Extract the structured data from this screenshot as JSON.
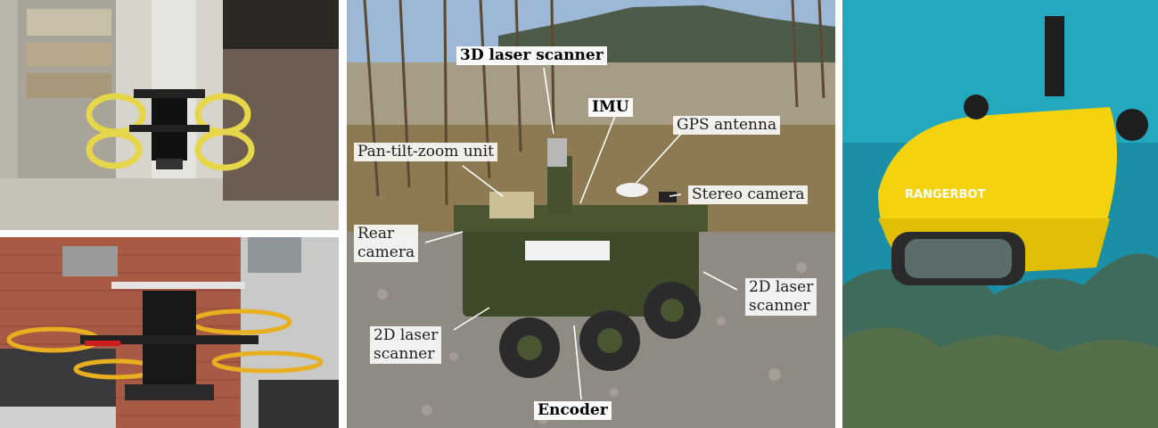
{
  "figure": {
    "labels": {
      "laser3d": "3D laser scanner",
      "imu": "IMU",
      "gps": "GPS antenna",
      "ptz": "Pan-tilt-zoom unit",
      "stereo": "Stereo camera",
      "rear_line1": "Rear",
      "rear_line2": "camera",
      "laser2d_right_line1": "2D laser",
      "laser2d_right_line2": "scanner",
      "laser2d_left_line1": "2D laser",
      "laser2d_left_line2": "scanner",
      "encoder": "Encoder"
    },
    "logo_text": "RANGERBOT"
  }
}
